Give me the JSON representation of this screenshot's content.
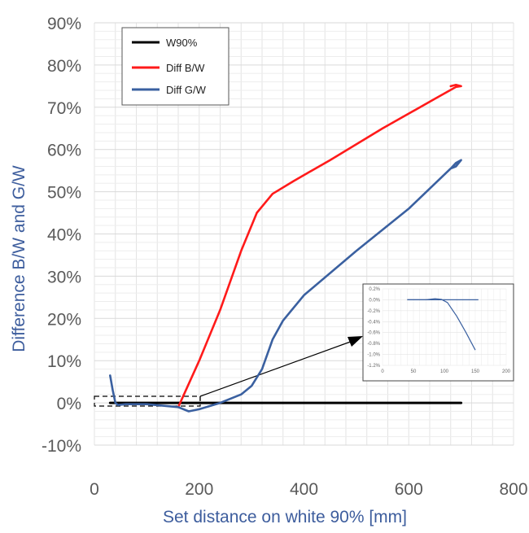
{
  "chart_data": {
    "type": "line",
    "title": "",
    "xlabel": "Set distance on white 90% [mm]",
    "ylabel": "Difference B/W and G/W",
    "xlim": [
      0,
      800
    ],
    "ylim": [
      -10,
      90
    ],
    "x_ticks": [
      "0",
      "200",
      "400",
      "600",
      "800"
    ],
    "y_ticks": [
      "-10%",
      "0%",
      "10%",
      "20%",
      "30%",
      "40%",
      "50%",
      "60%",
      "70%",
      "80%",
      "90%"
    ],
    "grid": true,
    "legend_position": "top-left",
    "series": [
      {
        "name": "W90%",
        "color": "#000000",
        "points": [
          [
            30,
            0
          ],
          [
            700,
            0
          ]
        ]
      },
      {
        "name": "Diff B/W",
        "color": "#ff1a1a",
        "points": [
          [
            160,
            -1
          ],
          [
            200,
            10
          ],
          [
            240,
            22
          ],
          [
            280,
            36
          ],
          [
            310,
            45
          ],
          [
            340,
            49.5
          ],
          [
            380,
            52.5
          ],
          [
            450,
            57.5
          ],
          [
            550,
            65
          ],
          [
            650,
            72
          ],
          [
            690,
            74.8
          ],
          [
            700,
            75
          ],
          [
            690,
            75.3
          ],
          [
            680,
            75
          ]
        ]
      },
      {
        "name": "Diff G/W",
        "color": "#3a60a0",
        "points": [
          [
            30,
            6.5
          ],
          [
            35,
            3
          ],
          [
            40,
            0
          ],
          [
            45,
            -0.5
          ],
          [
            60,
            -0.3
          ],
          [
            100,
            -0.3
          ],
          [
            160,
            -1
          ],
          [
            180,
            -2
          ],
          [
            200,
            -1.5
          ],
          [
            240,
            0
          ],
          [
            280,
            2
          ],
          [
            300,
            4
          ],
          [
            320,
            8
          ],
          [
            340,
            15
          ],
          [
            360,
            19.5
          ],
          [
            400,
            25.5
          ],
          [
            500,
            36
          ],
          [
            600,
            46
          ],
          [
            680,
            55.5
          ],
          [
            690,
            56.8
          ],
          [
            700,
            57.5
          ],
          [
            690,
            56
          ],
          [
            680,
            55.5
          ]
        ]
      }
    ],
    "inset": {
      "x_ticks": [
        "0",
        "50",
        "100",
        "150",
        "200"
      ],
      "y_ticks": [
        "0.2%",
        "0.0%",
        "-0.2%",
        "-0.4%",
        "-0.6%",
        "-0.8%",
        "-1.0%",
        "-1.2%"
      ],
      "xlim": [
        0,
        200
      ],
      "ylim": [
        -1.2,
        0.2
      ],
      "series": [
        {
          "name": "W90%",
          "color": "#3a60a0",
          "points": [
            [
              40,
              0
            ],
            [
              155,
              0
            ]
          ]
        },
        {
          "name": "Diff G/W",
          "color": "#3a60a0",
          "points": [
            [
              40,
              0
            ],
            [
              70,
              0
            ],
            [
              85,
              0.02
            ],
            [
              95,
              0.01
            ],
            [
              105,
              -0.05
            ],
            [
              120,
              -0.3
            ],
            [
              135,
              -0.6
            ],
            [
              150,
              -0.92
            ]
          ]
        }
      ]
    }
  }
}
